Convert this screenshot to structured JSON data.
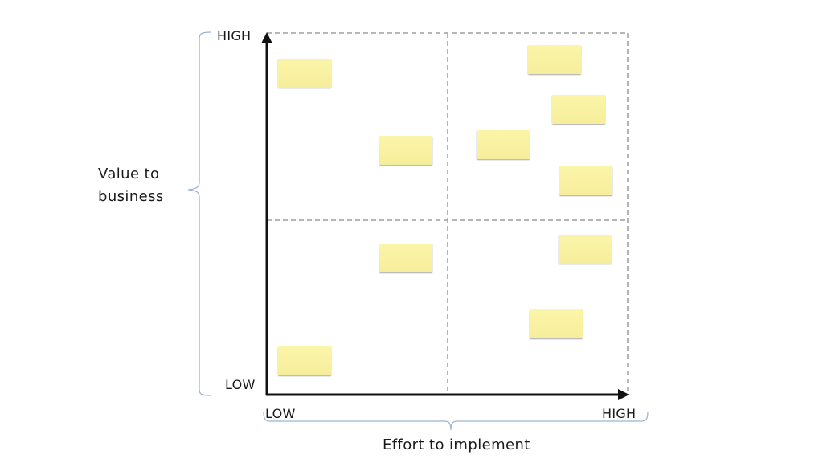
{
  "diagram": {
    "y_axis": {
      "title_line1": "Value to",
      "title_line2": "business",
      "high_label": "HIGH",
      "low_label": "LOW"
    },
    "x_axis": {
      "title": "Effort to implement",
      "low_label": "LOW",
      "high_label": "HIGH"
    },
    "colors": {
      "sticky_note": "#f8f0a0",
      "brace": "#9db3d4",
      "axis": "#111111",
      "grid": "#9e9e9e"
    },
    "sticky_notes_count": 10
  }
}
